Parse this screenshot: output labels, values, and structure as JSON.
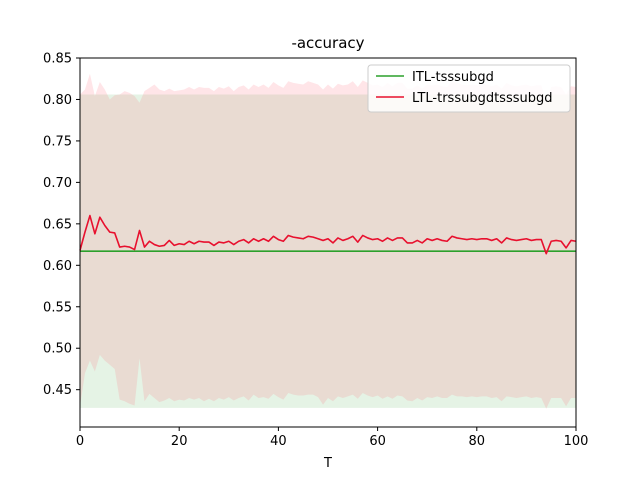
{
  "chart_data": {
    "type": "line",
    "title": "-accuracy",
    "xlabel": "T",
    "ylabel": "",
    "xlim": [
      0,
      100
    ],
    "ylim": [
      0.405,
      0.85
    ],
    "xticks": [
      0,
      20,
      40,
      60,
      80,
      100
    ],
    "yticks": [
      0.45,
      0.5,
      0.55,
      0.6,
      0.65,
      0.7,
      0.75,
      0.8,
      0.85
    ],
    "grid": false,
    "legend_position": "top-right",
    "series": [
      {
        "name": "ITL-tsssubgd",
        "color": "#2ca02c",
        "band_color": "#2ca02c",
        "x": [
          0,
          100
        ],
        "values": [
          0.617,
          0.617
        ],
        "band_low": [
          0.428,
          0.428
        ],
        "band_high": [
          0.806,
          0.806
        ]
      },
      {
        "name": "LTL-trssubgdtsssubgd",
        "color": "#e8102e",
        "band_color": "#ff6070",
        "x": [
          0,
          1,
          2,
          3,
          4,
          5,
          6,
          7,
          8,
          9,
          10,
          11,
          12,
          13,
          14,
          15,
          16,
          17,
          18,
          19,
          20,
          21,
          22,
          23,
          24,
          25,
          26,
          27,
          28,
          29,
          30,
          31,
          32,
          33,
          34,
          35,
          36,
          37,
          38,
          39,
          40,
          41,
          42,
          43,
          44,
          45,
          46,
          47,
          48,
          49,
          50,
          51,
          52,
          53,
          54,
          55,
          56,
          57,
          58,
          59,
          60,
          61,
          62,
          63,
          64,
          65,
          66,
          67,
          68,
          69,
          70,
          71,
          72,
          73,
          74,
          75,
          76,
          77,
          78,
          79,
          80,
          81,
          82,
          83,
          84,
          85,
          86,
          87,
          88,
          89,
          90,
          91,
          92,
          93,
          94,
          95,
          96,
          97,
          98,
          99,
          100
        ],
        "values": [
          0.618,
          0.64,
          0.66,
          0.638,
          0.658,
          0.648,
          0.64,
          0.639,
          0.622,
          0.623,
          0.622,
          0.619,
          0.642,
          0.622,
          0.629,
          0.625,
          0.623,
          0.624,
          0.63,
          0.624,
          0.626,
          0.625,
          0.629,
          0.626,
          0.629,
          0.628,
          0.628,
          0.624,
          0.628,
          0.627,
          0.629,
          0.625,
          0.629,
          0.631,
          0.627,
          0.632,
          0.629,
          0.632,
          0.629,
          0.635,
          0.631,
          0.629,
          0.636,
          0.634,
          0.633,
          0.632,
          0.635,
          0.634,
          0.632,
          0.63,
          0.632,
          0.627,
          0.633,
          0.63,
          0.632,
          0.635,
          0.628,
          0.636,
          0.633,
          0.631,
          0.632,
          0.629,
          0.633,
          0.63,
          0.633,
          0.633,
          0.627,
          0.627,
          0.63,
          0.627,
          0.632,
          0.63,
          0.632,
          0.63,
          0.629,
          0.635,
          0.633,
          0.632,
          0.631,
          0.632,
          0.631,
          0.632,
          0.632,
          0.63,
          0.632,
          0.627,
          0.633,
          0.631,
          0.63,
          0.631,
          0.632,
          0.63,
          0.631,
          0.631,
          0.614,
          0.629,
          0.63,
          0.629,
          0.621,
          0.63,
          0.629
        ],
        "band_low": [
          0.43,
          0.47,
          0.485,
          0.472,
          0.492,
          0.485,
          0.48,
          0.475,
          0.438,
          0.436,
          0.433,
          0.431,
          0.488,
          0.436,
          0.445,
          0.44,
          0.435,
          0.437,
          0.44,
          0.436,
          0.438,
          0.437,
          0.44,
          0.438,
          0.44,
          0.436,
          0.439,
          0.436,
          0.44,
          0.438,
          0.441,
          0.437,
          0.44,
          0.442,
          0.437,
          0.444,
          0.44,
          0.441,
          0.439,
          0.445,
          0.441,
          0.438,
          0.446,
          0.444,
          0.443,
          0.443,
          0.444,
          0.444,
          0.441,
          0.432,
          0.44,
          0.436,
          0.442,
          0.44,
          0.442,
          0.444,
          0.439,
          0.446,
          0.443,
          0.441,
          0.443,
          0.439,
          0.442,
          0.439,
          0.443,
          0.442,
          0.437,
          0.436,
          0.44,
          0.437,
          0.441,
          0.44,
          0.442,
          0.44,
          0.44,
          0.444,
          0.442,
          0.442,
          0.441,
          0.442,
          0.441,
          0.442,
          0.442,
          0.44,
          0.441,
          0.436,
          0.442,
          0.441,
          0.44,
          0.441,
          0.442,
          0.44,
          0.441,
          0.44,
          0.427,
          0.44,
          0.44,
          0.44,
          0.43,
          0.44,
          0.44
        ],
        "band_high": [
          0.806,
          0.812,
          0.831,
          0.804,
          0.821,
          0.812,
          0.8,
          0.805,
          0.806,
          0.81,
          0.808,
          0.804,
          0.796,
          0.81,
          0.814,
          0.818,
          0.812,
          0.81,
          0.813,
          0.81,
          0.811,
          0.812,
          0.815,
          0.812,
          0.815,
          0.814,
          0.814,
          0.81,
          0.815,
          0.813,
          0.816,
          0.81,
          0.815,
          0.817,
          0.812,
          0.818,
          0.815,
          0.818,
          0.814,
          0.821,
          0.817,
          0.814,
          0.822,
          0.82,
          0.819,
          0.818,
          0.822,
          0.82,
          0.818,
          0.812,
          0.818,
          0.813,
          0.819,
          0.817,
          0.818,
          0.822,
          0.815,
          0.823,
          0.82,
          0.817,
          0.818,
          0.815,
          0.82,
          0.816,
          0.82,
          0.82,
          0.813,
          0.813,
          0.817,
          0.813,
          0.818,
          0.817,
          0.818,
          0.816,
          0.815,
          0.822,
          0.82,
          0.818,
          0.817,
          0.818,
          0.817,
          0.818,
          0.818,
          0.816,
          0.818,
          0.813,
          0.82,
          0.817,
          0.816,
          0.817,
          0.818,
          0.816,
          0.817,
          0.817,
          0.8,
          0.815,
          0.816,
          0.815,
          0.806,
          0.816,
          0.815
        ]
      }
    ]
  }
}
